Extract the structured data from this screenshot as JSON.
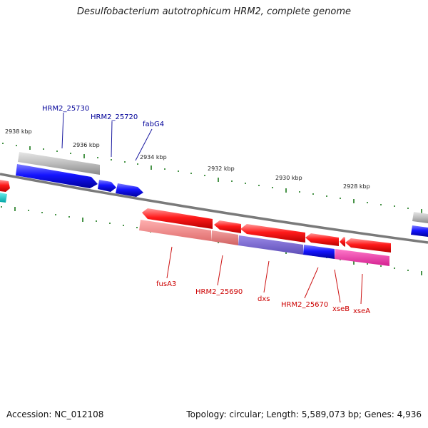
{
  "title": "Desulfobacterium autotrophicum HRM2, complete genome",
  "footer": {
    "accession": "Accession: NC_012108",
    "summary": "Topology: circular; Length: 5,589,073 bp; Genes: 4,936"
  },
  "scale_labels": [
    "2938 kbp",
    "2936 kbp",
    "2934 kbp",
    "2932 kbp",
    "2930 kbp",
    "2928 kbp"
  ],
  "top_strand_labels": [
    "HRM2_25730",
    "HRM2_25720",
    "fabG4"
  ],
  "bottom_strand_labels": [
    "fusA3",
    "HRM2_25690",
    "dxs",
    "HRM2_25670",
    "xseB",
    "xseA"
  ],
  "colors": {
    "forward_gene": "#ff0000",
    "reverse_gene": "#0000ee",
    "forward_label": "#cc0000",
    "reverse_label": "#000099",
    "tick": "#1b7a1b",
    "backbone": "#808080"
  }
}
